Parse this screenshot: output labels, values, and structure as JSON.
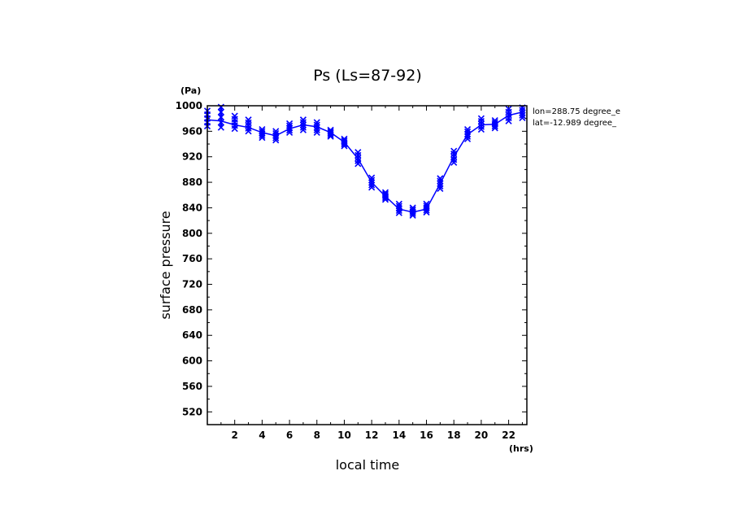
{
  "chart_data": {
    "type": "line",
    "title": "Ps (Ls=87-92)",
    "xlabel": "local time",
    "ylabel": "surface pressure",
    "x_unit": "(hrs)",
    "y_unit": "(Pa)",
    "xlim": [
      0,
      23.33
    ],
    "ylim": [
      500,
      1000
    ],
    "x_ticks": [
      2,
      4,
      6,
      8,
      10,
      12,
      14,
      16,
      18,
      20,
      22
    ],
    "y_ticks": [
      520,
      560,
      600,
      640,
      680,
      720,
      760,
      800,
      840,
      880,
      920,
      960,
      1000
    ],
    "annotations": [
      "lon=288.75 degree_e",
      "lat=-12.989 degree_"
    ],
    "grid": false,
    "series": [
      {
        "color": "#0000ff",
        "marker": "x",
        "x": [
          0,
          1,
          2,
          3,
          4,
          5,
          6,
          7,
          8,
          9,
          10,
          11,
          12,
          13,
          14,
          15,
          16,
          17,
          18,
          19,
          20,
          21,
          22,
          23
        ],
        "y": [
          978,
          976,
          970,
          966,
          958,
          953,
          964,
          970,
          967,
          958,
          943,
          917,
          880,
          858,
          838,
          833,
          838,
          878,
          920,
          955,
          970,
          971,
          985,
          990
        ],
        "spread": [
          [
            968,
            992
          ],
          [
            966,
            998
          ],
          [
            964,
            984
          ],
          [
            960,
            978
          ],
          [
            950,
            963
          ],
          [
            946,
            960
          ],
          [
            958,
            972
          ],
          [
            962,
            978
          ],
          [
            958,
            974
          ],
          [
            952,
            962
          ],
          [
            937,
            948
          ],
          [
            909,
            927
          ],
          [
            872,
            887
          ],
          [
            853,
            864
          ],
          [
            832,
            846
          ],
          [
            828,
            840
          ],
          [
            833,
            846
          ],
          [
            870,
            886
          ],
          [
            911,
            929
          ],
          [
            948,
            963
          ],
          [
            963,
            980
          ],
          [
            965,
            977
          ],
          [
            976,
            995
          ],
          [
            981,
            997
          ]
        ]
      }
    ]
  }
}
